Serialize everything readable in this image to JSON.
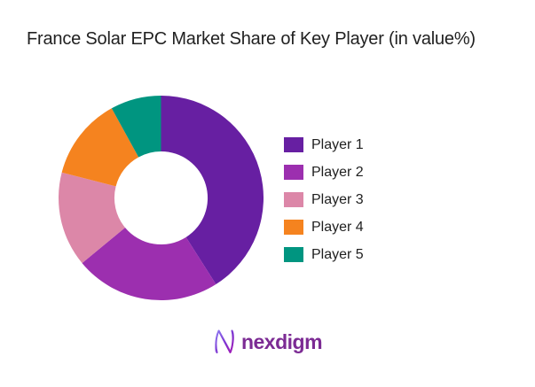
{
  "page": {
    "background_color": "#ffffff",
    "text_color": "#212121"
  },
  "header": {
    "title": "France Solar EPC Market Share of Key Player (in value%)"
  },
  "chart_data": {
    "type": "pie",
    "variant": "donut",
    "title": "France Solar EPC Market Share of Key Player (in value%)",
    "categories": [
      "Player 1",
      "Player 2",
      "Player 3",
      "Player 4",
      "Player 5"
    ],
    "values": [
      41,
      23,
      15,
      13,
      8
    ],
    "unit": "percent of value",
    "colors": [
      "#671FA2",
      "#9C2FAF",
      "#DC87A8",
      "#F5831F",
      "#009580"
    ],
    "start_angle_deg": 0,
    "direction": "clockwise",
    "inner_radius_ratio": 0.455,
    "legend_position": "right",
    "data_labels_visible": false,
    "legend": [
      {
        "label": "Player 1",
        "color": "#671FA2"
      },
      {
        "label": "Player 2",
        "color": "#9C2FAF"
      },
      {
        "label": "Player 3",
        "color": "#DC87A8"
      },
      {
        "label": "Player 4",
        "color": "#F5831F"
      },
      {
        "label": "Player 5",
        "color": "#009580"
      }
    ]
  },
  "footer": {
    "brand_name": "nexdigm",
    "brand_color": "#7C2B94",
    "logo_icon": "nexdigm-n-mark",
    "logo_gradient_start": "#8F7DF2",
    "logo_gradient_end": "#A51AB4"
  }
}
